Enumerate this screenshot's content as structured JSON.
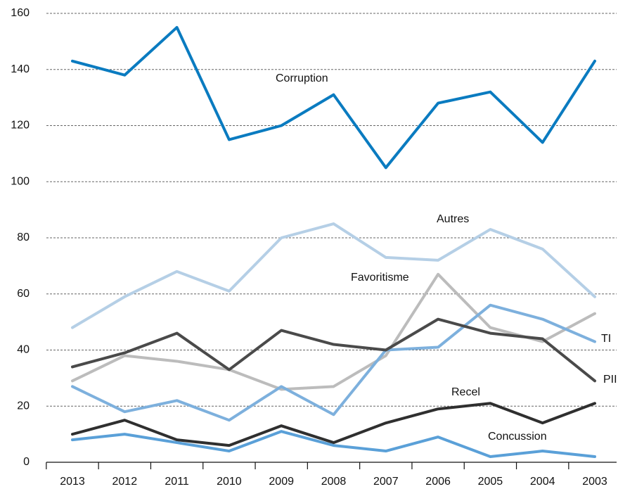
{
  "chart_data": {
    "type": "line",
    "categories": [
      "2013",
      "2012",
      "2011",
      "2010",
      "2009",
      "2008",
      "2007",
      "2006",
      "2005",
      "2004",
      "2003"
    ],
    "ylim": [
      0,
      160
    ],
    "yticks": [
      0,
      20,
      40,
      60,
      80,
      100,
      120,
      140,
      160
    ],
    "grid": true,
    "series": [
      {
        "name": "Corruption",
        "color": "#0a7bc0",
        "values": [
          143,
          138,
          155,
          115,
          120,
          131,
          105,
          128,
          132,
          114,
          143
        ]
      },
      {
        "name": "Autres",
        "color": "#b5cfe6",
        "values": [
          48,
          59,
          68,
          61,
          80,
          85,
          73,
          72,
          83,
          76,
          59
        ]
      },
      {
        "name": "Favoritisme",
        "color": "#bcbcbc",
        "values": [
          29,
          38,
          36,
          33,
          26,
          27,
          38,
          67,
          48,
          43,
          53
        ]
      },
      {
        "name": "TI",
        "color": "#7db0dd",
        "values": [
          27,
          18,
          22,
          15,
          27,
          17,
          40,
          41,
          56,
          51,
          43
        ]
      },
      {
        "name": "PII",
        "color": "#4a4a4a",
        "values": [
          34,
          39,
          46,
          33,
          47,
          42,
          40,
          51,
          46,
          44,
          29
        ]
      },
      {
        "name": "Recel",
        "color": "#2f2f2f",
        "values": [
          10,
          15,
          8,
          6,
          13,
          7,
          14,
          19,
          21,
          14,
          21
        ]
      },
      {
        "name": "Concussion",
        "color": "#5aa0d8",
        "values": [
          8,
          10,
          7,
          4,
          11,
          6,
          4,
          9,
          2,
          4,
          2
        ]
      }
    ]
  }
}
